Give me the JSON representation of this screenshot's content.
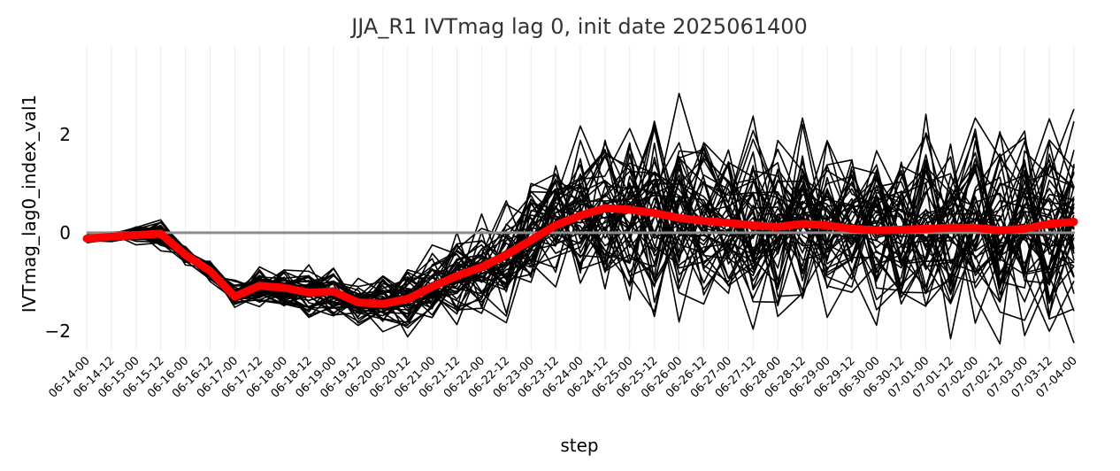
{
  "chart_data": {
    "type": "line",
    "title": "JJA_R1 IVTmag lag 0, init date 2025061400",
    "xlabel": "step",
    "ylabel": "IVTmag_lag0_index_val1",
    "ylim": [
      -2.4,
      3.8
    ],
    "yticks": [
      -2,
      0,
      2
    ],
    "grid": true,
    "x": [
      "06-14-00",
      "06-14-12",
      "06-15-00",
      "06-15-12",
      "06-16-00",
      "06-16-12",
      "06-17-00",
      "06-17-12",
      "06-18-00",
      "06-18-12",
      "06-19-00",
      "06-19-12",
      "06-20-00",
      "06-20-12",
      "06-21-00",
      "06-21-12",
      "06-22-00",
      "06-22-12",
      "06-23-00",
      "06-23-12",
      "06-24-00",
      "06-24-12",
      "06-25-00",
      "06-25-12",
      "06-26-00",
      "06-26-12",
      "06-27-00",
      "06-27-12",
      "06-28-00",
      "06-28-12",
      "06-29-00",
      "06-29-12",
      "06-30-00",
      "06-30-12",
      "07-01-00",
      "07-01-12",
      "07-02-00",
      "07-02-12",
      "07-03-00",
      "07-03-12",
      "07-04-00"
    ],
    "ensemble_mean": [
      -0.12,
      -0.08,
      -0.05,
      -0.02,
      -0.45,
      -0.78,
      -1.3,
      -1.08,
      -1.12,
      -1.22,
      -1.2,
      -1.42,
      -1.45,
      -1.35,
      -1.1,
      -0.88,
      -0.7,
      -0.45,
      -0.15,
      0.15,
      0.35,
      0.5,
      0.47,
      0.4,
      0.3,
      0.24,
      0.2,
      0.15,
      0.12,
      0.18,
      0.15,
      0.08,
      0.05,
      0.06,
      0.08,
      0.1,
      0.1,
      0.05,
      0.08,
      0.18,
      0.22
    ],
    "ensemble_members": 50,
    "ensemble_spread": [
      0.04,
      0.05,
      0.08,
      0.14,
      0.08,
      0.12,
      0.12,
      0.2,
      0.22,
      0.25,
      0.25,
      0.25,
      0.26,
      0.3,
      0.35,
      0.4,
      0.48,
      0.55,
      0.62,
      0.7,
      0.75,
      0.8,
      0.85,
      0.85,
      0.88,
      0.88,
      0.9,
      0.9,
      0.9,
      0.9,
      0.9,
      0.9,
      0.9,
      0.9,
      0.92,
      0.92,
      0.92,
      0.95,
      0.95,
      0.95,
      0.95
    ],
    "reference_value": 0,
    "colors": {
      "members": "#000000",
      "mean": "#ff0000",
      "reference": "#8c8c8c",
      "grid": "#ebebeb"
    }
  }
}
